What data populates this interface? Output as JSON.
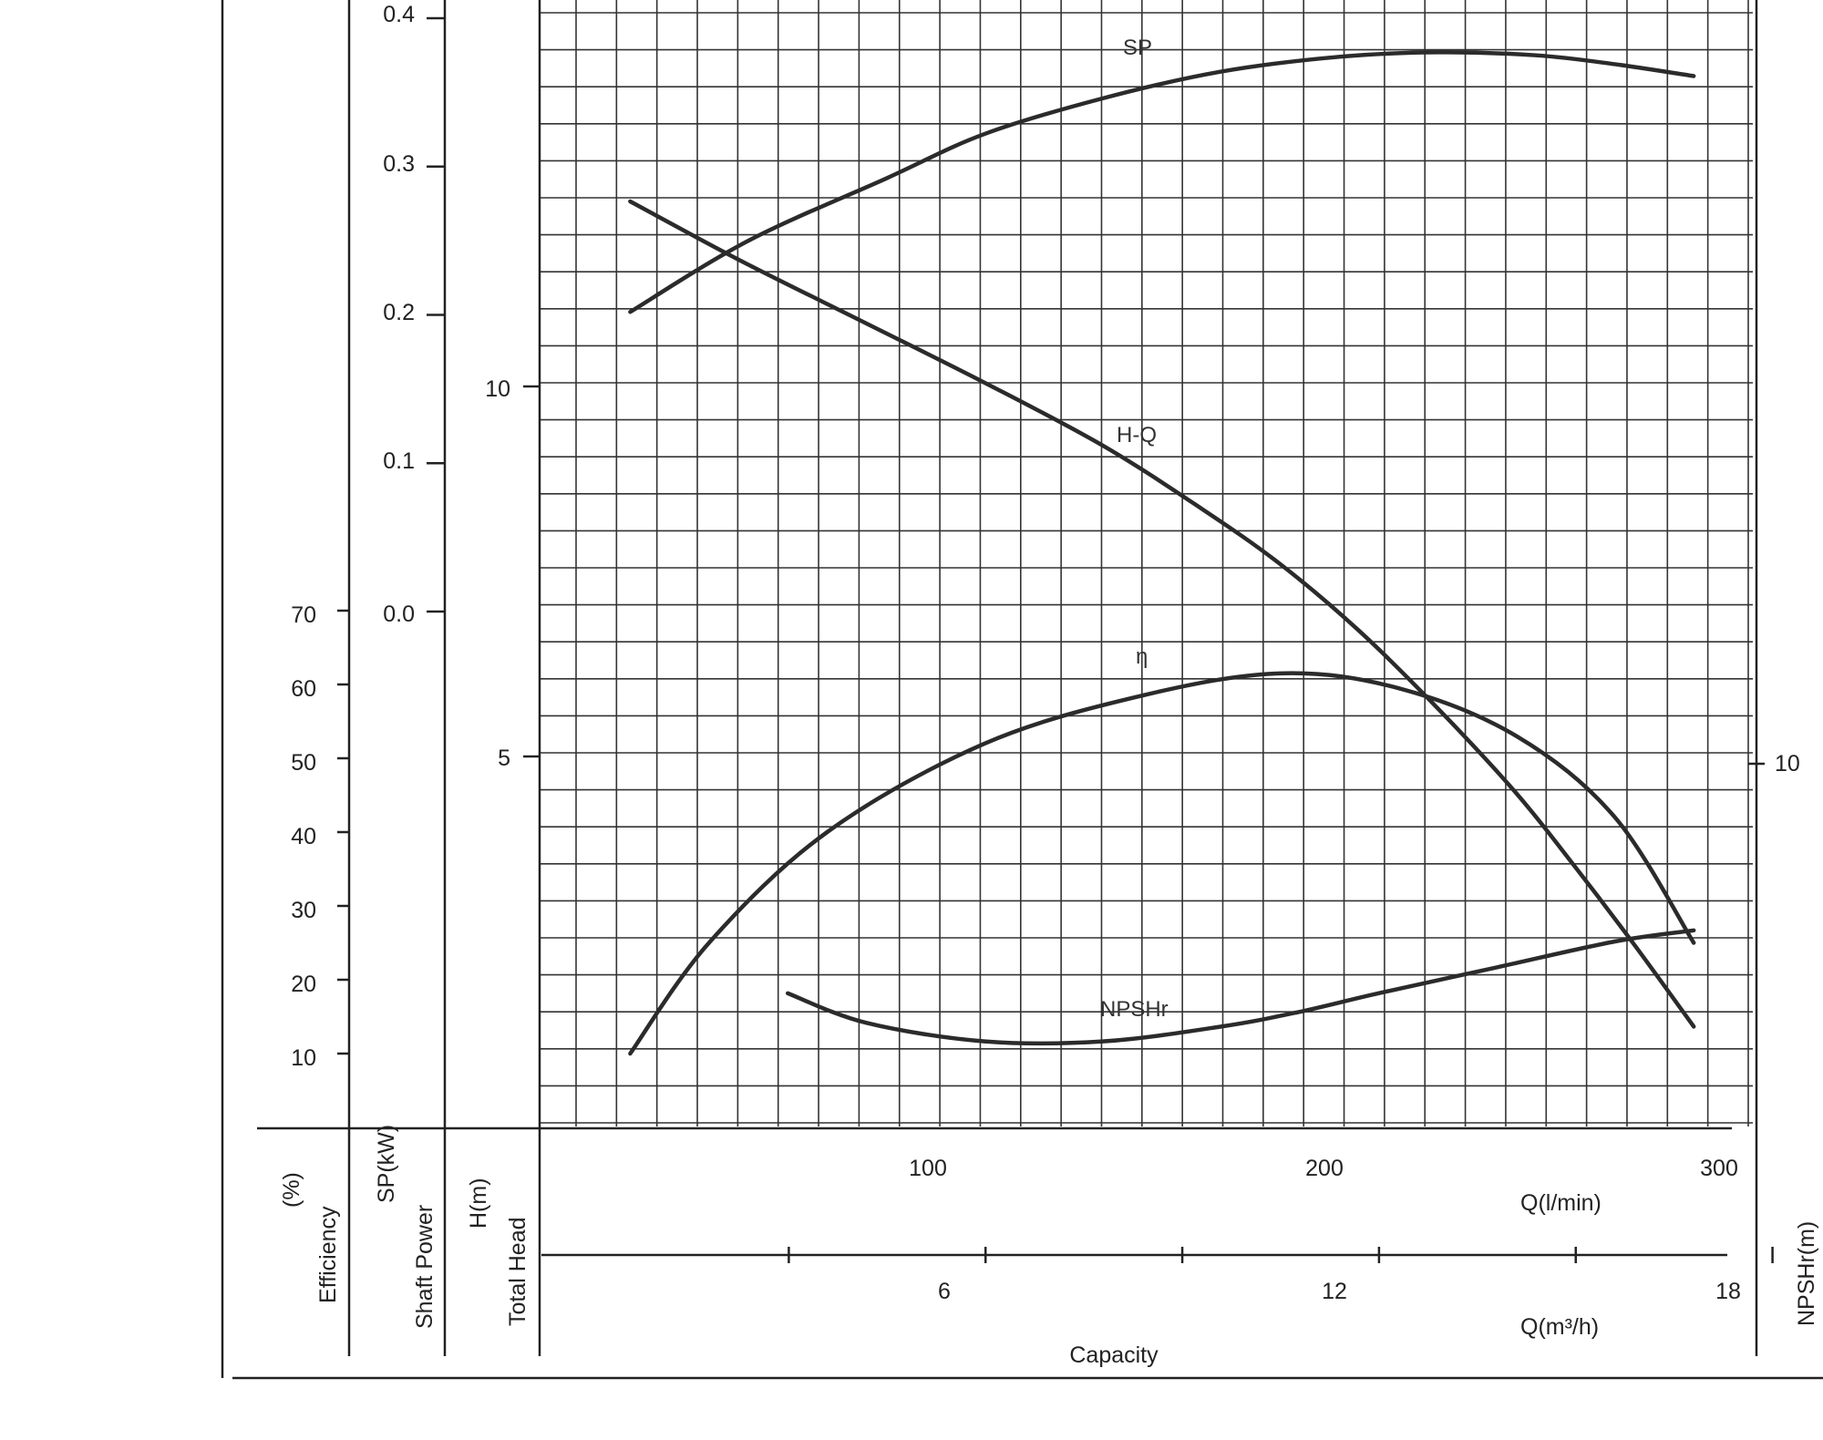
{
  "chart_data": {
    "type": "line",
    "title": "",
    "x_axes": {
      "flow_lpm": {
        "label": "Q(l/min)",
        "ticks": [
          100,
          200,
          300
        ],
        "range": [
          -13,
          295
        ]
      },
      "flow_m3h": {
        "label": "Q(m³/h)",
        "ticks": [
          6,
          12,
          18
        ],
        "minor_ticks": [
          3,
          9,
          15
        ],
        "range": [
          -0.8,
          17.7
        ]
      },
      "title": "Capacity"
    },
    "y_axes": {
      "efficiency": {
        "name": "Efficiency",
        "unit": "(%)",
        "ticks": [
          10,
          20,
          30,
          40,
          50,
          60,
          70
        ]
      },
      "shaft_power": {
        "name": "Shaft Power",
        "unit": "SP(kW)",
        "ticks": [
          "0.0",
          "0.1",
          "0.2",
          "0.3",
          "0.4"
        ],
        "tick_values": [
          0,
          0.1,
          0.2,
          0.3,
          0.4
        ]
      },
      "total_head": {
        "name": "Total Head",
        "unit": "H(m)",
        "ticks": [
          5,
          10
        ],
        "range": [
          0,
          15
        ]
      },
      "npshr": {
        "unit": "NPSHr(m)",
        "ticks": [
          10
        ]
      }
    },
    "series": [
      {
        "name": "SP",
        "label": "SP",
        "axis": "shaft_power",
        "x_lpm": [
          10,
          40,
          75,
          100,
          130,
          160,
          190,
          215,
          240,
          260,
          280
        ],
        "values": [
          0.202,
          0.25,
          0.292,
          0.322,
          0.346,
          0.364,
          0.374,
          0.377,
          0.375,
          0.369,
          0.361
        ]
      },
      {
        "name": "H-Q",
        "label": "H-Q",
        "axis": "total_head",
        "x_lpm": [
          10,
          38,
          70,
          100,
          130,
          155,
          175,
          195,
          215,
          235,
          250,
          265,
          280
        ],
        "values": [
          12.5,
          11.7,
          10.85,
          10.05,
          9.2,
          8.35,
          7.6,
          6.7,
          5.65,
          4.5,
          3.5,
          2.45,
          1.35
        ]
      },
      {
        "name": "η",
        "label": "η",
        "axis": "efficiency",
        "x_lpm": [
          10,
          30,
          60,
          100,
          140,
          175,
          205,
          235,
          260,
          280
        ],
        "values": [
          10,
          25,
          40,
          52,
          58.5,
          61.5,
          59.5,
          53,
          42,
          25
        ]
      },
      {
        "name": "NPSHr",
        "label": "NPSHr",
        "axis": "total_head",
        "x_lpm": [
          50,
          70,
          100,
          130,
          160,
          180,
          200,
          230,
          260,
          280
        ],
        "values": [
          1.8,
          1.4,
          1.15,
          1.15,
          1.35,
          1.55,
          1.8,
          2.15,
          2.5,
          2.65
        ]
      }
    ]
  }
}
